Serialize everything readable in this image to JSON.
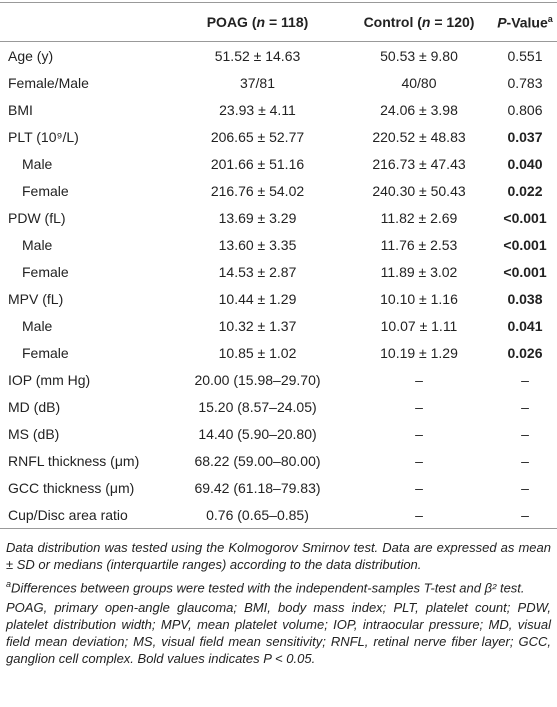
{
  "table": {
    "header": {
      "label": "",
      "poag": [
        "POAG (",
        "n",
        " = 118)"
      ],
      "control": [
        "Control (",
        "n",
        " = 120)"
      ],
      "p": [
        "P",
        "-Value",
        "a"
      ]
    },
    "rows": [
      {
        "label": "Age (y)",
        "poag": "51.52 ± 14.63",
        "control": "50.53 ± 9.80",
        "p": "0.551"
      },
      {
        "label": "Female/Male",
        "poag": "37/81",
        "control": "40/80",
        "p": "0.783"
      },
      {
        "label": "BMI",
        "poag": "23.93 ± 4.11",
        "control": "24.06 ± 3.98",
        "p": "0.806"
      },
      {
        "label": "PLT (10⁹/L)",
        "poag": "206.65 ± 52.77",
        "control": "220.52 ± 48.83",
        "p": "0.037",
        "bold": true
      },
      {
        "label": "Male",
        "indent": true,
        "poag": "201.66 ± 51.16",
        "control": "216.73 ± 47.43",
        "p": "0.040",
        "bold": true
      },
      {
        "label": "Female",
        "indent": true,
        "poag": "216.76 ± 54.02",
        "control": "240.30 ± 50.43",
        "p": "0.022",
        "bold": true
      },
      {
        "label": "PDW (fL)",
        "poag": "13.69 ± 3.29",
        "control": "11.82 ± 2.69",
        "p": "<0.001",
        "bold": true
      },
      {
        "label": "Male",
        "indent": true,
        "poag": "13.60 ± 3.35",
        "control": "11.76 ± 2.53",
        "p": "<0.001",
        "bold": true
      },
      {
        "label": "Female",
        "indent": true,
        "poag": "14.53 ± 2.87",
        "control": "11.89 ± 3.02",
        "p": "<0.001",
        "bold": true
      },
      {
        "label": "MPV (fL)",
        "poag": "10.44 ± 1.29",
        "control": "10.10 ± 1.16",
        "p": "0.038",
        "bold": true
      },
      {
        "label": "Male",
        "indent": true,
        "poag": "10.32 ± 1.37",
        "control": "10.07 ± 1.11",
        "p": "0.041",
        "bold": true
      },
      {
        "label": "Female",
        "indent": true,
        "poag": "10.85 ± 1.02",
        "control": "10.19 ± 1.29",
        "p": "0.026",
        "bold": true
      },
      {
        "label": "IOP (mm Hg)",
        "poag": "20.00 (15.98–29.70)",
        "control": "–",
        "p": "–"
      },
      {
        "label": "MD (dB)",
        "poag": "15.20 (8.57–24.05)",
        "control": "–",
        "p": "–"
      },
      {
        "label": "MS (dB)",
        "poag": "14.40 (5.90–20.80)",
        "control": "–",
        "p": "–"
      },
      {
        "label": "RNFL thickness (μm)",
        "poag": "68.22 (59.00–80.00)",
        "control": "–",
        "p": "–"
      },
      {
        "label": "GCC thickness (μm)",
        "poag": "69.42 (61.18–79.83)",
        "control": "–",
        "p": "–"
      },
      {
        "label": "Cup/Disc area ratio",
        "poag": "0.76 (0.65–0.85)",
        "control": "–",
        "p": "–"
      }
    ]
  },
  "notes": [
    {
      "text": "Data distribution was tested using the Kolmogorov Smirnov test. Data are expressed as mean ± SD or medians (interquartile ranges) according to the data distribution."
    },
    {
      "mark": "a",
      "text": "Differences between groups were tested with the independent-samples T-test and β² test."
    },
    {
      "text": "POAG, primary open-angle glaucoma; BMI, body mass index; PLT, platelet count; PDW, platelet distribution width; MPV, mean platelet volume; IOP, intraocular pressure; MD, visual field mean deviation; MS, visual field mean sensitivity; RNFL, retinal nerve fiber layer; GCC, ganglion cell complex. Bold values indicates P < 0.05."
    }
  ]
}
